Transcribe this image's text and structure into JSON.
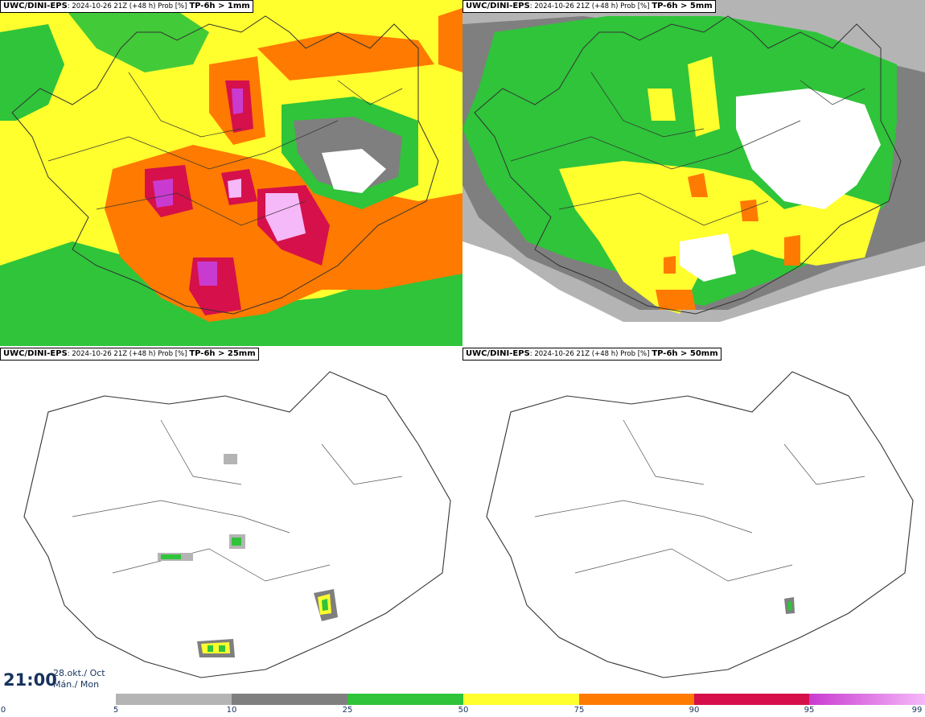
{
  "panels": [
    {
      "source": "UWC/DINI-EPS",
      "meta": ": 2024-10-26 21Z (+48 h) Prob [%]",
      "threshold": "TP-6h > 1mm"
    },
    {
      "source": "UWC/DINI-EPS",
      "meta": ": 2024-10-26 21Z (+48 h) Prob [%]",
      "threshold": "TP-6h > 5mm"
    },
    {
      "source": "UWC/DINI-EPS",
      "meta": ": 2024-10-26 21Z (+48 h) Prob [%]",
      "threshold": "TP-6h > 25mm"
    },
    {
      "source": "UWC/DINI-EPS",
      "meta": ": 2024-10-26 21Z (+48 h) Prob [%]",
      "threshold": "TP-6h > 50mm"
    }
  ],
  "valid_time": {
    "time": "21:00",
    "date_line1": "28.okt./ Oct",
    "date_line2": "Mán./ Mon"
  },
  "legend": {
    "ticks": [
      "0",
      "5",
      "10",
      "25",
      "50",
      "75",
      "90",
      "95",
      "99"
    ],
    "bins": [
      {
        "from": "5",
        "to": "10",
        "color": "#b4b4b4"
      },
      {
        "from": "10",
        "to": "25",
        "color": "#7f7f7f"
      },
      {
        "from": "25",
        "to": "50",
        "color": "#2fc43a"
      },
      {
        "from": "50",
        "to": "75",
        "color": "#ffff2e"
      },
      {
        "from": "75",
        "to": "90",
        "color": "#ff7a00"
      },
      {
        "from": "90",
        "to": "95",
        "color": "#d6104a"
      },
      {
        "from": "95",
        "to": "99",
        "color": "#c93bd0",
        "color_end": "#f5b8f8"
      }
    ]
  }
}
